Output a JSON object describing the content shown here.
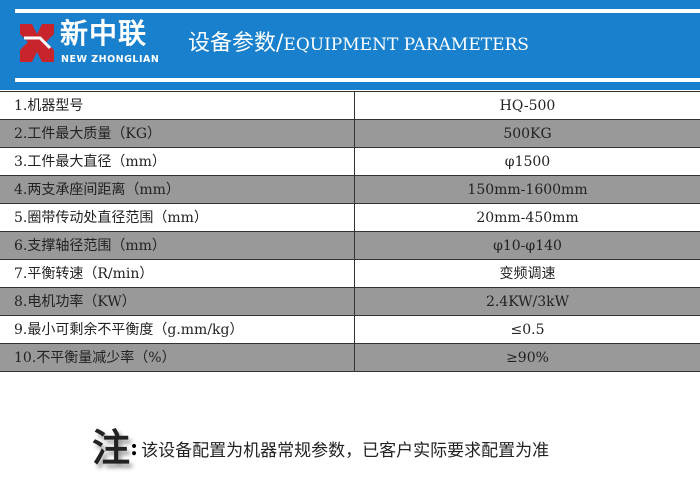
{
  "header": {
    "brand_cn": "新中联",
    "brand_en": "NEW ZHONGLIAN",
    "title_cn": "设备参数/",
    "title_en": "EQUIPMENT PARAMETERS",
    "colors": {
      "bg": "#1880cc",
      "logo": "#c8242c"
    }
  },
  "rows": [
    {
      "label": "1.机器型号",
      "value": "HQ-500"
    },
    {
      "label": "2.工件最大质量（KG）",
      "value": "500KG"
    },
    {
      "label": "3.工件最大直径（mm）",
      "value": "φ1500"
    },
    {
      "label": "4.两支承座间距离（mm）",
      "value": "150mm-1600mm"
    },
    {
      "label": "5.圈带传动处直径范围（mm）",
      "value": "20mm-450mm"
    },
    {
      "label": "6.支撑轴径范围（mm）",
      "value": "φ10-φ140"
    },
    {
      "label": "7.平衡转速（R/min）",
      "value": "变频调速"
    },
    {
      "label": "8.电机功率（KW）",
      "value": "2.4KW/3kW"
    },
    {
      "label": "9.最小可剩余不平衡度（g.mm/kg）",
      "value": "≤0.5"
    },
    {
      "label": "10.不平衡量减少率（%）",
      "value": "≥90%"
    }
  ],
  "note": {
    "mark": "注",
    "colon": ":",
    "text": "该设备配置为机器常规参数，已客户实际要求配置为准"
  }
}
